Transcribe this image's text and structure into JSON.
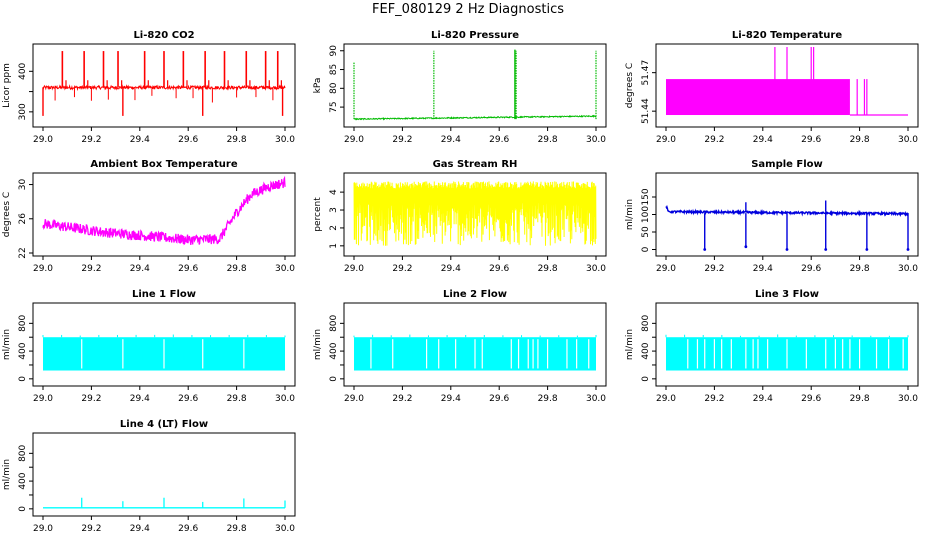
{
  "main_title": "FEF_080129  2 Hz Diagnostics",
  "colors": {
    "co2": "#ff0000",
    "pressure": "#00bb00",
    "temperature": "#ff00ff",
    "ambient": "#ff00ff",
    "rh": "#ffff00",
    "sample": "#0000dd",
    "line": "#00ffff"
  },
  "chart_data": [
    {
      "id": "co2",
      "type": "line",
      "title": "Li-820 CO2",
      "ylabel": "Licor ppm",
      "xlim": [
        29.0,
        30.0
      ],
      "ylim": [
        270,
        460
      ],
      "xticks": [
        "29.0",
        "29.2",
        "29.4",
        "29.6",
        "29.8",
        "30.0"
      ],
      "yticks": [
        300,
        350,
        400
      ],
      "ytick_labels": [
        "300",
        "",
        "400"
      ],
      "base": 360,
      "noise": 8,
      "spikes_up": [
        29.08,
        29.17,
        29.25,
        29.31,
        29.42,
        29.5,
        29.58,
        29.67,
        29.75,
        29.84,
        29.92,
        29.97
      ],
      "spike_up_value": 450,
      "spikes_down": [
        29.0,
        29.33,
        29.66,
        29.99
      ],
      "spike_down_value": 290
    },
    {
      "id": "pressure",
      "type": "line",
      "title": "Li-820 Pressure",
      "ylabel": "kPa",
      "xlim": [
        29.0,
        30.0
      ],
      "ylim": [
        70.5,
        91
      ],
      "xticks": [
        "29.0",
        "29.2",
        "29.4",
        "29.6",
        "29.8",
        "30.0"
      ],
      "yticks": [
        75,
        80,
        85,
        90
      ],
      "ytick_labels": [
        "75",
        "80",
        "85",
        "90"
      ],
      "base_start": 71.8,
      "base_end": 72.6,
      "spikes": [
        29.0,
        29.33,
        29.67,
        30.0
      ],
      "spike_values": [
        87,
        90,
        90,
        90
      ]
    },
    {
      "id": "temperature",
      "type": "area",
      "title": "Li-820 Temperature",
      "ylabel": "degrees C",
      "xlim": [
        29.0,
        30.0
      ],
      "ylim": [
        51.43,
        51.49
      ],
      "xticks": [
        "29.0",
        "29.2",
        "29.4",
        "29.6",
        "29.8",
        "30.0"
      ],
      "yticks": [
        51.44,
        51.47
      ],
      "ytick_labels": [
        "51.44",
        "51.47"
      ],
      "block_end": 29.76,
      "block_top": 51.465,
      "floor": 51.437,
      "spikes": [
        29.45,
        29.5,
        29.6,
        29.61,
        29.79,
        29.82,
        29.83
      ],
      "spike_values": [
        51.49,
        51.49,
        51.49,
        51.49,
        51.465,
        51.465,
        51.465
      ]
    },
    {
      "id": "ambient",
      "type": "line",
      "title": "Ambient Box Temperature",
      "ylabel": "degrees C",
      "xlim": [
        29.0,
        30.0
      ],
      "ylim": [
        22,
        31
      ],
      "xticks": [
        "29.0",
        "29.2",
        "29.4",
        "29.6",
        "29.8",
        "30.0"
      ],
      "yticks": [
        22,
        26,
        30
      ],
      "ytick_labels": [
        "22",
        "26",
        "30"
      ],
      "trend_x": [
        29.0,
        29.1,
        29.25,
        29.45,
        29.6,
        29.73,
        29.8,
        29.86,
        29.93,
        30.0
      ],
      "trend_y": [
        25.2,
        24.8,
        24.2,
        23.7,
        23.3,
        23.4,
        26.5,
        28.6,
        29.5,
        30.0
      ]
    },
    {
      "id": "rh",
      "type": "line",
      "title": "Gas Stream RH",
      "ylabel": "percent",
      "xlim": [
        29.0,
        30.0
      ],
      "ylim": [
        0.6,
        4.9
      ],
      "xticks": [
        "29.0",
        "29.2",
        "29.4",
        "29.6",
        "29.8",
        "30.0"
      ],
      "yticks": [
        1,
        2,
        3,
        4
      ],
      "ytick_labels": [
        "1",
        "2",
        "3",
        "4"
      ],
      "low": 1.0,
      "high": 4.6
    },
    {
      "id": "sample",
      "type": "line",
      "title": "Sample Flow",
      "ylabel": "ml/min",
      "xlim": [
        29.0,
        30.0
      ],
      "ylim": [
        -10,
        210
      ],
      "xticks": [
        "29.0",
        "29.2",
        "29.4",
        "29.6",
        "29.8",
        "30.0"
      ],
      "yticks": [
        0,
        50,
        100,
        150
      ],
      "ytick_labels": [
        "0",
        "50",
        "100",
        "150"
      ],
      "base": 108,
      "start": 120,
      "dips": [
        29.16,
        29.33,
        29.5,
        29.66,
        29.83,
        30.0
      ],
      "dip_values": [
        0,
        8,
        0,
        0,
        0,
        0
      ],
      "spikes": [
        29.33,
        29.66
      ],
      "spike_values": [
        135,
        140
      ]
    },
    {
      "id": "line1",
      "type": "line",
      "title": "Line 1 Flow",
      "ylabel": "ml/min",
      "xlim": [
        29.0,
        30.0
      ],
      "ylim": [
        -60,
        1050
      ],
      "xticks": [
        "29.0",
        "29.2",
        "29.4",
        "29.6",
        "29.8",
        "30.0"
      ],
      "yticks": [
        0,
        200,
        400,
        600,
        800
      ],
      "ytick_labels": [
        "0",
        "",
        "400",
        "",
        "800"
      ],
      "low": 120,
      "high": 600,
      "gaps": [
        29.16,
        29.33,
        29.5,
        29.66,
        29.83
      ]
    },
    {
      "id": "line2",
      "type": "line",
      "title": "Line 2 Flow",
      "ylabel": "ml/min",
      "xlim": [
        29.0,
        30.0
      ],
      "ylim": [
        -60,
        1050
      ],
      "xticks": [
        "29.0",
        "29.2",
        "29.4",
        "29.6",
        "29.8",
        "30.0"
      ],
      "yticks": [
        0,
        200,
        400,
        600,
        800
      ],
      "ytick_labels": [
        "0",
        "",
        "400",
        "",
        "800"
      ],
      "low": 120,
      "high": 600,
      "gaps": [
        29.07,
        29.16,
        29.3,
        29.35,
        29.42,
        29.5,
        29.53,
        29.65,
        29.68,
        29.72,
        29.74,
        29.76,
        29.8,
        29.88,
        29.92,
        29.97
      ]
    },
    {
      "id": "line3",
      "type": "line",
      "title": "Line 3 Flow",
      "ylabel": "ml/min",
      "xlim": [
        29.0,
        30.0
      ],
      "ylim": [
        -60,
        1050
      ],
      "xticks": [
        "29.0",
        "29.2",
        "29.4",
        "29.6",
        "29.8",
        "30.0"
      ],
      "yticks": [
        0,
        200,
        400,
        600,
        800
      ],
      "ytick_labels": [
        "0",
        "",
        "400",
        "",
        "800"
      ],
      "low": 120,
      "high": 600,
      "gaps": [
        29.09,
        29.13,
        29.16,
        29.2,
        29.23,
        29.27,
        29.33,
        29.36,
        29.38,
        29.42,
        29.5,
        29.58,
        29.66,
        29.7,
        29.73,
        29.76,
        29.8,
        29.87,
        29.92,
        29.98
      ]
    },
    {
      "id": "line4",
      "type": "line",
      "title": "Line 4 (LT) Flow",
      "ylabel": "ml/min",
      "xlim": [
        29.0,
        30.0
      ],
      "ylim": [
        -60,
        1050
      ],
      "xticks": [
        "29.0",
        "29.2",
        "29.4",
        "29.6",
        "29.8",
        "30.0"
      ],
      "yticks": [
        0,
        200,
        400,
        600,
        800
      ],
      "ytick_labels": [
        "0",
        "",
        "400",
        "",
        "800"
      ],
      "base": 15,
      "spikes": [
        29.16,
        29.33,
        29.5,
        29.66,
        29.83,
        30.0
      ],
      "spike_values": [
        160,
        110,
        160,
        100,
        150,
        120
      ]
    }
  ]
}
